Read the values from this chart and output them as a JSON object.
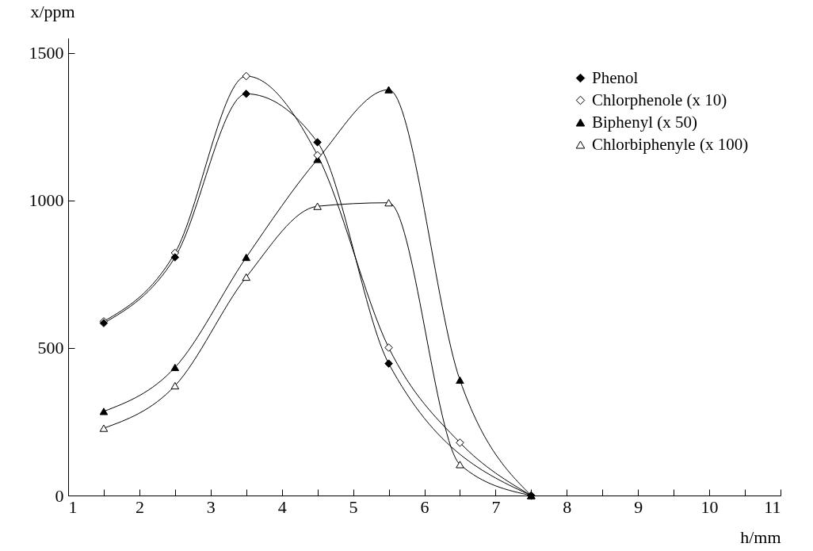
{
  "chart_data": {
    "type": "line",
    "xlabel": "h/mm",
    "ylabel": "x/ppm",
    "x": [
      1.5,
      2.5,
      3.5,
      4.5,
      5.5,
      6.5,
      7.5
    ],
    "series": [
      {
        "name": "Phenol",
        "color": "#000000",
        "marker": "diamond",
        "values": [
          584,
          807,
          1361,
          1197,
          447,
          null,
          0
        ]
      },
      {
        "name": "Chlorphenole (x 10)",
        "color": "#ffffff",
        "marker": "diamond",
        "values": [
          590,
          822,
          1421,
          1153,
          501,
          179,
          0
        ]
      },
      {
        "name": "Biphenyl (x 50)",
        "color": "#000000",
        "marker": "triangle",
        "values": [
          285,
          434,
          807,
          1139,
          1375,
          391,
          0
        ]
      },
      {
        "name": "Chlorbiphenyle (x 100)",
        "color": "#ffffff",
        "marker": "triangle",
        "values": [
          228,
          372,
          740,
          980,
          992,
          105,
          0
        ]
      }
    ],
    "xlim": [
      1,
      11
    ],
    "ylim": [
      0,
      1550
    ],
    "xticks": [
      1,
      {
        "value": 1.5,
        "label": null
      },
      2,
      {
        "value": 2.5,
        "label": null
      },
      3,
      {
        "value": 3.5,
        "label": null
      },
      4,
      {
        "value": 4.5,
        "label": null
      },
      5,
      {
        "value": 5.5,
        "label": null
      },
      6,
      {
        "value": 6.5,
        "label": null
      },
      7,
      {
        "value": 7.5,
        "label": null
      },
      8,
      {
        "value": 8.5,
        "label": null
      },
      9,
      {
        "value": 9.5,
        "label": null
      },
      10,
      {
        "value": 10.5,
        "label": null
      },
      11
    ],
    "yticks": [
      0,
      500,
      1000,
      1500
    ],
    "grid": false,
    "legend": "top right",
    "line_style": "solid"
  }
}
